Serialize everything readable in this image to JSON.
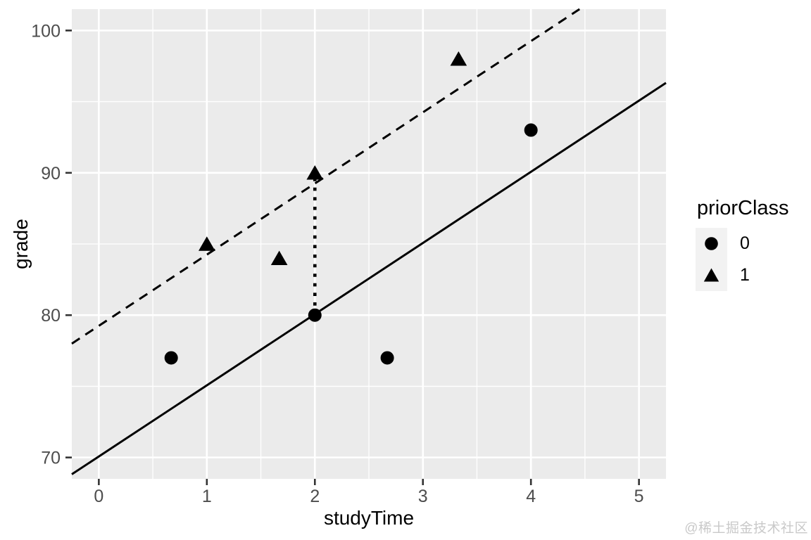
{
  "chart_data": {
    "type": "scatter",
    "xlabel": "studyTime",
    "ylabel": "grade",
    "xlim": [
      -0.25,
      5.25
    ],
    "ylim": [
      68.5,
      101.5
    ],
    "x_major_ticks": [
      0,
      1,
      2,
      3,
      4,
      5
    ],
    "y_major_ticks": [
      70,
      80,
      90,
      100
    ],
    "x_minor_gridlines": [
      0.5,
      1.5,
      2.5,
      3.5,
      4.5
    ],
    "y_minor_gridlines": [
      75,
      85,
      95
    ],
    "grid": "major-and-minor",
    "legend_position": "right",
    "series": [
      {
        "name": "priorClass 0",
        "marker": "circle",
        "points": [
          {
            "x": 0.67,
            "y": 77
          },
          {
            "x": 2,
            "y": 80
          },
          {
            "x": 2.67,
            "y": 77
          },
          {
            "x": 4,
            "y": 93
          }
        ]
      },
      {
        "name": "priorClass 1",
        "marker": "triangle",
        "points": [
          {
            "x": 1,
            "y": 85
          },
          {
            "x": 1.67,
            "y": 84
          },
          {
            "x": 2,
            "y": 90
          },
          {
            "x": 3.33,
            "y": 98
          }
        ]
      }
    ],
    "fit_lines": [
      {
        "name": "fit priorClass 0",
        "style": "solid",
        "slope": 5.0,
        "intercept": 70.07
      },
      {
        "name": "fit priorClass 1",
        "style": "dashed",
        "slope": 5.0,
        "intercept": 79.25
      }
    ],
    "segments": [
      {
        "name": "priorClass effect at studyTime 2",
        "style": "dotted",
        "x1": 2,
        "y1": 80,
        "x2": 2,
        "y2": 90
      }
    ]
  },
  "axis": {
    "x_title": "studyTime",
    "y_title": "grade",
    "x_tick_labels": [
      "0",
      "1",
      "2",
      "3",
      "4",
      "5"
    ],
    "y_tick_labels": [
      "70",
      "80",
      "90",
      "100"
    ]
  },
  "legend": {
    "title": "priorClass",
    "items": [
      {
        "label": "0",
        "marker": "circle"
      },
      {
        "label": "1",
        "marker": "triangle"
      }
    ]
  },
  "watermark": "@稀土掘金技术社区",
  "colors": {
    "panel_background": "#EBEBEB",
    "gridline": "#FFFFFF",
    "axis_text": "#4D4D4D",
    "tick_mark": "#333333",
    "title_text": "#000000",
    "data": "#000000",
    "legend_key_background": "#F2F2F2",
    "watermark_text": "#C9C9C9"
  }
}
